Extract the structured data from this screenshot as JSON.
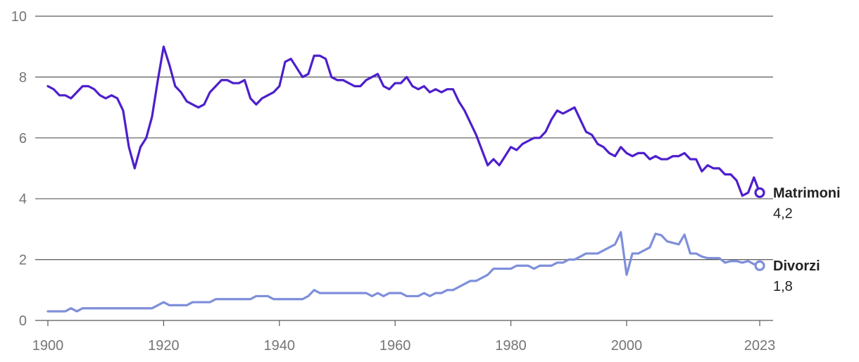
{
  "chart_data": {
    "type": "line",
    "title": "",
    "xlabel": "",
    "ylabel": "",
    "xlim": [
      1900,
      2023
    ],
    "ylim": [
      0,
      10
    ],
    "y_ticks": [
      0,
      2,
      4,
      6,
      8,
      10
    ],
    "x_ticks": [
      1900,
      1920,
      1940,
      1960,
      1980,
      2000,
      2023
    ],
    "grid": "horizontal",
    "legend": "direct labels at line ends (right)",
    "series": [
      {
        "name": "Matrimoni",
        "color": "#4d1fcc",
        "end_label": "4,2",
        "points": [
          [
            1900,
            7.7
          ],
          [
            1901,
            7.6
          ],
          [
            1902,
            7.4
          ],
          [
            1903,
            7.4
          ],
          [
            1904,
            7.3
          ],
          [
            1905,
            7.5
          ],
          [
            1906,
            7.7
          ],
          [
            1907,
            7.7
          ],
          [
            1908,
            7.6
          ],
          [
            1909,
            7.4
          ],
          [
            1910,
            7.3
          ],
          [
            1911,
            7.4
          ],
          [
            1912,
            7.3
          ],
          [
            1913,
            6.9
          ],
          [
            1914,
            5.7
          ],
          [
            1915,
            5.0
          ],
          [
            1916,
            5.7
          ],
          [
            1917,
            6.0
          ],
          [
            1918,
            6.7
          ],
          [
            1919,
            7.9
          ],
          [
            1920,
            9.0
          ],
          [
            1921,
            8.4
          ],
          [
            1922,
            7.7
          ],
          [
            1923,
            7.5
          ],
          [
            1924,
            7.2
          ],
          [
            1925,
            7.1
          ],
          [
            1926,
            7.0
          ],
          [
            1927,
            7.1
          ],
          [
            1928,
            7.5
          ],
          [
            1929,
            7.7
          ],
          [
            1930,
            7.9
          ],
          [
            1931,
            7.9
          ],
          [
            1932,
            7.8
          ],
          [
            1933,
            7.8
          ],
          [
            1934,
            7.9
          ],
          [
            1935,
            7.3
          ],
          [
            1936,
            7.1
          ],
          [
            1937,
            7.3
          ],
          [
            1938,
            7.4
          ],
          [
            1939,
            7.5
          ],
          [
            1940,
            7.7
          ],
          [
            1941,
            8.5
          ],
          [
            1942,
            8.6
          ],
          [
            1943,
            8.3
          ],
          [
            1944,
            8.0
          ],
          [
            1945,
            8.1
          ],
          [
            1946,
            8.7
          ],
          [
            1947,
            8.7
          ],
          [
            1948,
            8.6
          ],
          [
            1949,
            8.0
          ],
          [
            1950,
            7.9
          ],
          [
            1951,
            7.9
          ],
          [
            1952,
            7.8
          ],
          [
            1953,
            7.7
          ],
          [
            1954,
            7.7
          ],
          [
            1955,
            7.9
          ],
          [
            1956,
            8.0
          ],
          [
            1957,
            8.1
          ],
          [
            1958,
            7.7
          ],
          [
            1959,
            7.6
          ],
          [
            1960,
            7.8
          ],
          [
            1961,
            7.8
          ],
          [
            1962,
            8.0
          ],
          [
            1963,
            7.7
          ],
          [
            1964,
            7.6
          ],
          [
            1965,
            7.7
          ],
          [
            1966,
            7.5
          ],
          [
            1967,
            7.6
          ],
          [
            1968,
            7.5
          ],
          [
            1969,
            7.6
          ],
          [
            1970,
            7.6
          ],
          [
            1971,
            7.2
          ],
          [
            1972,
            6.9
          ],
          [
            1973,
            6.5
          ],
          [
            1974,
            6.1
          ],
          [
            1975,
            5.6
          ],
          [
            1976,
            5.1
          ],
          [
            1977,
            5.3
          ],
          [
            1978,
            5.1
          ],
          [
            1979,
            5.4
          ],
          [
            1980,
            5.7
          ],
          [
            1981,
            5.6
          ],
          [
            1982,
            5.8
          ],
          [
            1983,
            5.9
          ],
          [
            1984,
            6.0
          ],
          [
            1985,
            6.0
          ],
          [
            1986,
            6.2
          ],
          [
            1987,
            6.6
          ],
          [
            1988,
            6.9
          ],
          [
            1989,
            6.8
          ],
          [
            1990,
            6.9
          ],
          [
            1991,
            7.0
          ],
          [
            1992,
            6.6
          ],
          [
            1993,
            6.2
          ],
          [
            1994,
            6.1
          ],
          [
            1995,
            5.8
          ],
          [
            1996,
            5.7
          ],
          [
            1997,
            5.5
          ],
          [
            1998,
            5.4
          ],
          [
            1999,
            5.7
          ],
          [
            2000,
            5.5
          ],
          [
            2001,
            5.4
          ],
          [
            2002,
            5.5
          ],
          [
            2003,
            5.5
          ],
          [
            2004,
            5.3
          ],
          [
            2005,
            5.4
          ],
          [
            2006,
            5.3
          ],
          [
            2007,
            5.3
          ],
          [
            2008,
            5.4
          ],
          [
            2009,
            5.4
          ],
          [
            2010,
            5.5
          ],
          [
            2011,
            5.3
          ],
          [
            2012,
            5.3
          ],
          [
            2013,
            4.9
          ],
          [
            2014,
            5.1
          ],
          [
            2015,
            5.0
          ],
          [
            2016,
            5.0
          ],
          [
            2017,
            4.8
          ],
          [
            2018,
            4.8
          ],
          [
            2019,
            4.6
          ],
          [
            2020,
            4.1
          ],
          [
            2021,
            4.2
          ],
          [
            2022,
            4.7
          ],
          [
            2023,
            4.2
          ]
        ]
      },
      {
        "name": "Divorzi",
        "color": "#7e8fda",
        "end_label": "1,8",
        "points": [
          [
            1900,
            0.3
          ],
          [
            1901,
            0.3
          ],
          [
            1902,
            0.3
          ],
          [
            1903,
            0.3
          ],
          [
            1904,
            0.4
          ],
          [
            1905,
            0.3
          ],
          [
            1906,
            0.4
          ],
          [
            1907,
            0.4
          ],
          [
            1908,
            0.4
          ],
          [
            1909,
            0.4
          ],
          [
            1910,
            0.4
          ],
          [
            1911,
            0.4
          ],
          [
            1912,
            0.4
          ],
          [
            1913,
            0.4
          ],
          [
            1914,
            0.4
          ],
          [
            1915,
            0.4
          ],
          [
            1916,
            0.4
          ],
          [
            1917,
            0.4
          ],
          [
            1918,
            0.4
          ],
          [
            1919,
            0.5
          ],
          [
            1920,
            0.6
          ],
          [
            1921,
            0.5
          ],
          [
            1922,
            0.5
          ],
          [
            1923,
            0.5
          ],
          [
            1924,
            0.5
          ],
          [
            1925,
            0.6
          ],
          [
            1926,
            0.6
          ],
          [
            1927,
            0.6
          ],
          [
            1928,
            0.6
          ],
          [
            1929,
            0.7
          ],
          [
            1930,
            0.7
          ],
          [
            1931,
            0.7
          ],
          [
            1932,
            0.7
          ],
          [
            1933,
            0.7
          ],
          [
            1934,
            0.7
          ],
          [
            1935,
            0.7
          ],
          [
            1936,
            0.8
          ],
          [
            1937,
            0.8
          ],
          [
            1938,
            0.8
          ],
          [
            1939,
            0.7
          ],
          [
            1940,
            0.7
          ],
          [
            1941,
            0.7
          ],
          [
            1942,
            0.7
          ],
          [
            1943,
            0.7
          ],
          [
            1944,
            0.7
          ],
          [
            1945,
            0.8
          ],
          [
            1946,
            1.0
          ],
          [
            1947,
            0.9
          ],
          [
            1948,
            0.9
          ],
          [
            1949,
            0.9
          ],
          [
            1950,
            0.9
          ],
          [
            1951,
            0.9
          ],
          [
            1952,
            0.9
          ],
          [
            1953,
            0.9
          ],
          [
            1954,
            0.9
          ],
          [
            1955,
            0.9
          ],
          [
            1956,
            0.8
          ],
          [
            1957,
            0.9
          ],
          [
            1958,
            0.8
          ],
          [
            1959,
            0.9
          ],
          [
            1960,
            0.9
          ],
          [
            1961,
            0.9
          ],
          [
            1962,
            0.8
          ],
          [
            1963,
            0.8
          ],
          [
            1964,
            0.8
          ],
          [
            1965,
            0.9
          ],
          [
            1966,
            0.8
          ],
          [
            1967,
            0.9
          ],
          [
            1968,
            0.9
          ],
          [
            1969,
            1.0
          ],
          [
            1970,
            1.0
          ],
          [
            1971,
            1.1
          ],
          [
            1972,
            1.2
          ],
          [
            1973,
            1.3
          ],
          [
            1974,
            1.3
          ],
          [
            1975,
            1.4
          ],
          [
            1976,
            1.5
          ],
          [
            1977,
            1.7
          ],
          [
            1978,
            1.7
          ],
          [
            1979,
            1.7
          ],
          [
            1980,
            1.7
          ],
          [
            1981,
            1.8
          ],
          [
            1982,
            1.8
          ],
          [
            1983,
            1.8
          ],
          [
            1984,
            1.7
          ],
          [
            1985,
            1.8
          ],
          [
            1986,
            1.8
          ],
          [
            1987,
            1.8
          ],
          [
            1988,
            1.9
          ],
          [
            1989,
            1.9
          ],
          [
            1990,
            2.0
          ],
          [
            1991,
            2.0
          ],
          [
            1992,
            2.1
          ],
          [
            1993,
            2.2
          ],
          [
            1994,
            2.2
          ],
          [
            1995,
            2.2
          ],
          [
            1996,
            2.3
          ],
          [
            1997,
            2.4
          ],
          [
            1998,
            2.5
          ],
          [
            1999,
            2.9
          ],
          [
            2000,
            1.5
          ],
          [
            2001,
            2.2
          ],
          [
            2002,
            2.2
          ],
          [
            2003,
            2.3
          ],
          [
            2004,
            2.4
          ],
          [
            2005,
            2.85
          ],
          [
            2006,
            2.8
          ],
          [
            2007,
            2.6
          ],
          [
            2008,
            2.55
          ],
          [
            2009,
            2.5
          ],
          [
            2010,
            2.82
          ],
          [
            2011,
            2.2
          ],
          [
            2012,
            2.2
          ],
          [
            2013,
            2.1
          ],
          [
            2014,
            2.05
          ],
          [
            2015,
            2.05
          ],
          [
            2016,
            2.05
          ],
          [
            2017,
            1.9
          ],
          [
            2018,
            1.95
          ],
          [
            2019,
            1.95
          ],
          [
            2020,
            1.9
          ],
          [
            2021,
            1.95
          ],
          [
            2022,
            1.85
          ],
          [
            2023,
            1.8
          ]
        ]
      }
    ]
  }
}
